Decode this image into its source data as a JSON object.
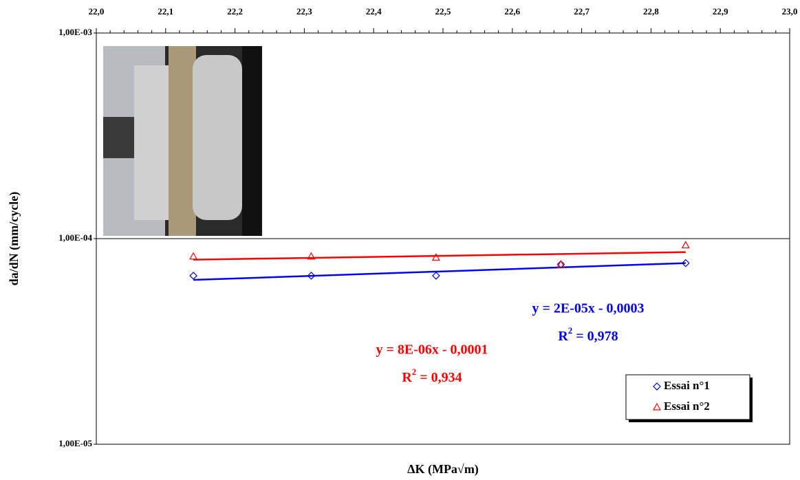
{
  "chart_data": {
    "type": "scatter",
    "x_label": "ΔK (MPa√m)",
    "y_label": "da/dN (mm/cycle)",
    "log_y": true,
    "grid": true,
    "legend_position": "lower right",
    "xlim": [
      22.0,
      23.0
    ],
    "xticks": [
      {
        "value": 22.0,
        "label": "22,0"
      },
      {
        "value": 22.1,
        "label": "22,1"
      },
      {
        "value": 22.2,
        "label": "22,2"
      },
      {
        "value": 22.3,
        "label": "22,3"
      },
      {
        "value": 22.4,
        "label": "22,4"
      },
      {
        "value": 22.5,
        "label": "22,5"
      },
      {
        "value": 22.6,
        "label": "22,6"
      },
      {
        "value": 22.7,
        "label": "22,7"
      },
      {
        "value": 22.8,
        "label": "22,8"
      },
      {
        "value": 22.9,
        "label": "22,9"
      },
      {
        "value": 23.0,
        "label": "23,0"
      }
    ],
    "ylim": [
      1e-05,
      0.001
    ],
    "yticks": [
      {
        "value": 1e-05,
        "label": "1,00E-05"
      },
      {
        "value": 0.0001,
        "label": "1,00E-04"
      },
      {
        "value": 0.001,
        "label": "1,00E-03"
      }
    ],
    "series": [
      {
        "name": "Essai n°1",
        "color": "#0000cc",
        "marker": "diamond",
        "x": [
          22.14,
          22.31,
          22.49,
          22.67,
          22.85
        ],
        "values": [
          6.6e-05,
          6.6e-05,
          6.6e-05,
          7.5e-05,
          7.6e-05
        ]
      },
      {
        "name": "Essai n°2",
        "color": "#ff0000",
        "marker": "triangle",
        "x": [
          22.14,
          22.31,
          22.49,
          22.67,
          22.85
        ],
        "values": [
          8.2e-05,
          8.2e-05,
          8.1e-05,
          7.5e-05,
          9.3e-05
        ]
      }
    ],
    "trendlines": [
      {
        "color": "#0000ff",
        "x": [
          22.14,
          22.85
        ],
        "values": [
          6.3e-05,
          7.6e-05
        ],
        "equation": "y = 2E-05x - 0,0003",
        "r2": {
          "base": "R",
          "sup": "2",
          "value": " = 0,978"
        }
      },
      {
        "color": "#ff0000",
        "x": [
          22.14,
          22.85
        ],
        "values": [
          7.9e-05,
          8.6e-05
        ],
        "equation": "y = 8E-06x - 0,0001",
        "r2": {
          "base": "R",
          "sup": "2",
          "value": " = 0,934"
        }
      }
    ]
  }
}
